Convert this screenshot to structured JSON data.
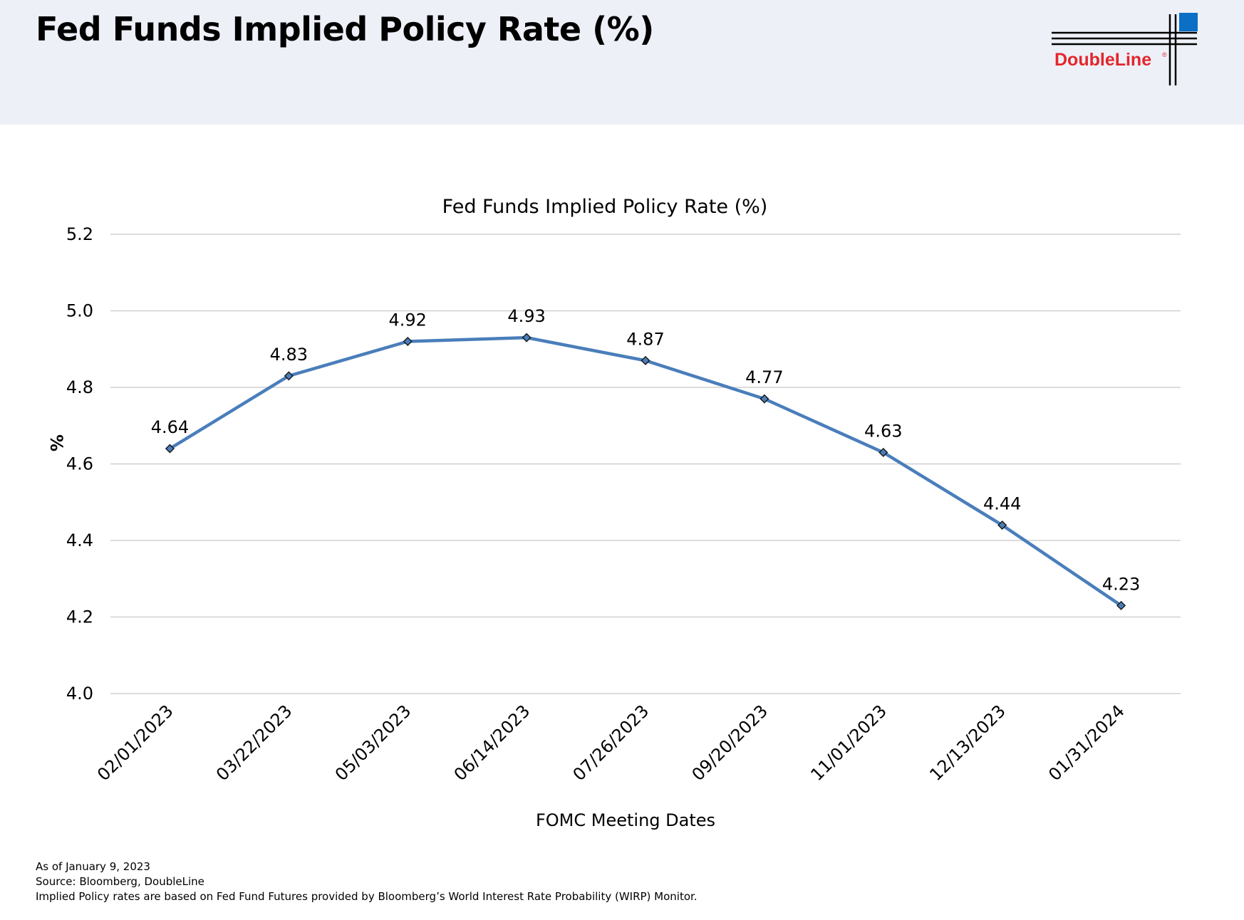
{
  "header": {
    "title": "Fed Funds Implied Policy Rate (%)",
    "logo_text": "DoubleLine",
    "logo_mark": "®"
  },
  "chart_data": {
    "type": "line",
    "title": "Fed Funds Implied Policy Rate (%)",
    "xlabel": "FOMC Meeting Dates",
    "ylabel": "%",
    "ylim": [
      4.0,
      5.2
    ],
    "yticks": [
      "4.0",
      "4.2",
      "4.4",
      "4.6",
      "4.8",
      "5.0",
      "5.2"
    ],
    "grid": true,
    "categories": [
      "02/01/2023",
      "03/22/2023",
      "05/03/2023",
      "06/14/2023",
      "07/26/2023",
      "09/20/2023",
      "11/01/2023",
      "12/13/2023",
      "01/31/2024"
    ],
    "series": [
      {
        "values": [
          4.64,
          4.83,
          4.92,
          4.93,
          4.87,
          4.77,
          4.63,
          4.44,
          4.23
        ],
        "color": "#4a7ebb"
      }
    ]
  },
  "footnotes": {
    "as_of": "As of January 9, 2023",
    "source": "Source: Bloomberg, DoubleLine",
    "note": "Implied Policy rates are based on Fed Fund Futures provided by Bloomberg’s World Interest Rate Probability (WIRP) Monitor."
  },
  "colors": {
    "header_bg": "#edf0f7",
    "line": "#4a7ebb",
    "logo_red": "#e3262c",
    "logo_blue": "#0b6fc6",
    "grid": "#d0d0d0"
  }
}
